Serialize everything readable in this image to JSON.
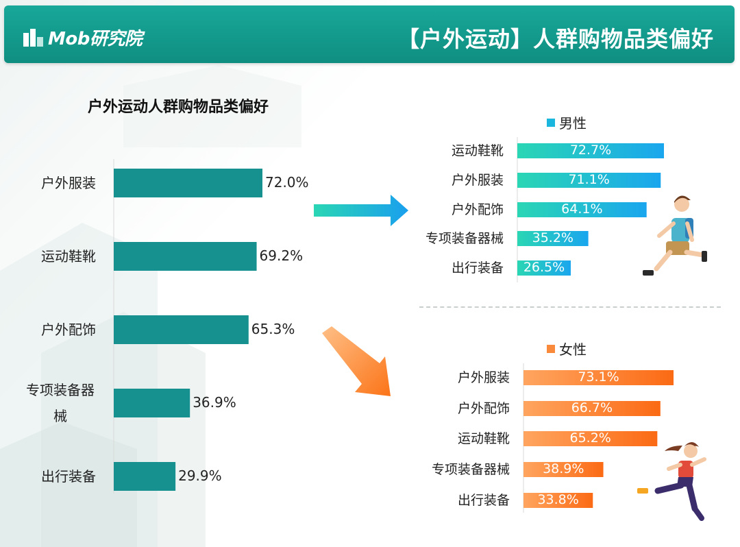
{
  "header": {
    "logo_text": "Mob研究院",
    "title": "【户外运动】人群购物品类偏好"
  },
  "colors": {
    "header": "#14998b",
    "left_bar": "#16918f",
    "male_gradient": [
      "#2ad6b4",
      "#1aa6ee"
    ],
    "female_gradient": [
      "#ffa55f",
      "#fb6a14"
    ]
  },
  "chart_data": [
    {
      "type": "bar",
      "orientation": "horizontal",
      "title": "户外运动人群购物品类偏好",
      "categories": [
        "户外服装",
        "运动鞋靴",
        "户外配饰",
        "专项装备器械",
        "出行装备"
      ],
      "values": [
        72.0,
        69.2,
        65.3,
        36.9,
        29.9
      ],
      "value_labels": [
        "72.0%",
        "69.2%",
        "65.3%",
        "36.9%",
        "29.9%"
      ],
      "xlim": [
        0,
        100
      ]
    },
    {
      "type": "bar",
      "orientation": "horizontal",
      "legend": "男性",
      "categories": [
        "运动鞋靴",
        "户外服装",
        "户外配饰",
        "专项装备器械",
        "出行装备"
      ],
      "values": [
        72.7,
        71.1,
        64.1,
        35.2,
        26.5
      ],
      "value_labels": [
        "72.7%",
        "71.1%",
        "64.1%",
        "35.2%",
        "26.5%"
      ],
      "xlim": [
        0,
        100
      ]
    },
    {
      "type": "bar",
      "orientation": "horizontal",
      "legend": "女性",
      "categories": [
        "户外服装",
        "户外配饰",
        "运动鞋靴",
        "专项装备器械",
        "出行装备"
      ],
      "values": [
        73.1,
        66.7,
        65.2,
        38.9,
        33.8
      ],
      "value_labels": [
        "73.1%",
        "66.7%",
        "65.2%",
        "38.9%",
        "33.8%"
      ],
      "xlim": [
        0,
        100
      ]
    }
  ],
  "icons": [
    "building-backdrop-icon",
    "arrow-right-icon",
    "arrow-down-right-icon",
    "male-runner-icon",
    "female-runner-icon"
  ]
}
